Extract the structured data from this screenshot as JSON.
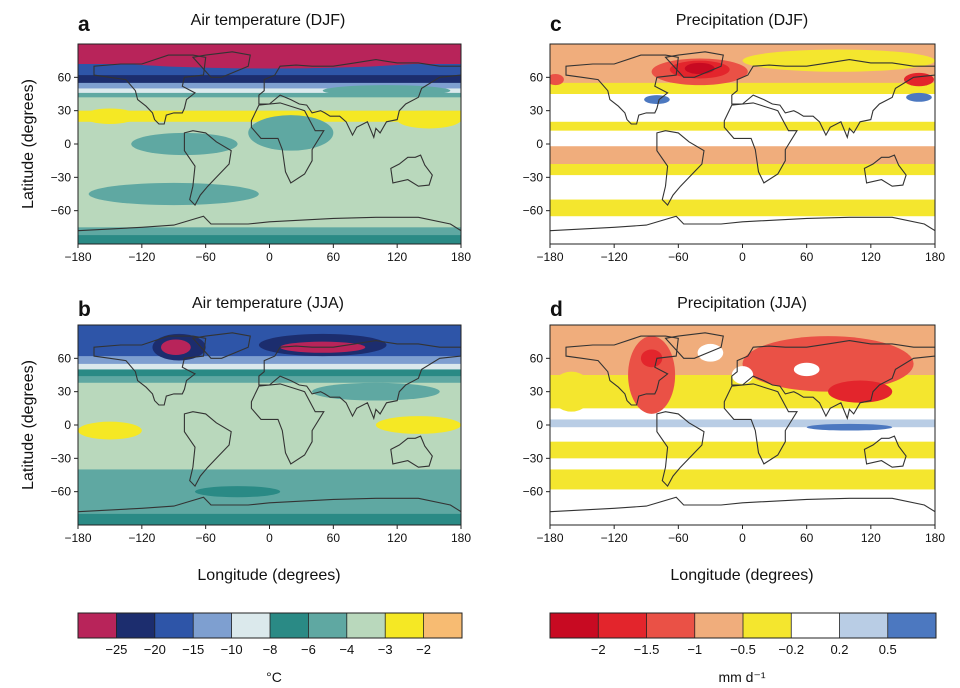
{
  "chart_data": [
    {
      "panel": "a",
      "type": "heatmap",
      "title": "Air temperature (DJF)",
      "variable": "temperature",
      "xlabel": "",
      "ylabel": "Latitude (degrees)",
      "xlim": [
        -180,
        180
      ],
      "ylim": [
        -90,
        90
      ],
      "x_ticks": [
        -180,
        -120,
        -60,
        0,
        60,
        120,
        180
      ],
      "y_ticks": [
        60,
        30,
        0,
        -30,
        -60
      ],
      "zonal_bands": [
        {
          "from_lat": 90,
          "to_lat": 72,
          "class": 0
        },
        {
          "from_lat": 72,
          "to_lat": 62,
          "class": 2
        },
        {
          "from_lat": 62,
          "to_lat": 55,
          "class": 1
        },
        {
          "from_lat": 55,
          "to_lat": 50,
          "class": 3
        },
        {
          "from_lat": 50,
          "to_lat": 46,
          "class": 4
        },
        {
          "from_lat": 46,
          "to_lat": 42,
          "class": 6
        },
        {
          "from_lat": 42,
          "to_lat": 30,
          "class": 7
        },
        {
          "from_lat": 30,
          "to_lat": 20,
          "class": 8
        },
        {
          "from_lat": 20,
          "to_lat": -75,
          "class": 7
        },
        {
          "from_lat": -75,
          "to_lat": -82,
          "class": 6
        },
        {
          "from_lat": -82,
          "to_lat": -90,
          "class": 5
        }
      ],
      "anomaly_regions": [
        {
          "lon": 0,
          "lat": 80,
          "rlon": 180,
          "rlat": 12,
          "class": 0
        },
        {
          "lon": 110,
          "lat": 48,
          "rlon": 60,
          "rlat": 5,
          "class": 6
        },
        {
          "lon": 20,
          "lat": 10,
          "rlon": 40,
          "rlat": 16,
          "class": 6
        },
        {
          "lon": -80,
          "lat": 0,
          "rlon": 50,
          "rlat": 10,
          "class": 6
        },
        {
          "lon": -90,
          "lat": -45,
          "rlon": 80,
          "rlat": 10,
          "class": 6
        },
        {
          "lon": 150,
          "lat": 22,
          "rlon": 30,
          "rlat": 8,
          "class": 8
        },
        {
          "lon": -150,
          "lat": 25,
          "rlon": 25,
          "rlat": 7,
          "class": 8
        }
      ]
    },
    {
      "panel": "b",
      "type": "heatmap",
      "title": "Air temperature (JJA)",
      "variable": "temperature",
      "xlabel": "Longitude (degrees)",
      "ylabel": "Latitude (degrees)",
      "xlim": [
        -180,
        180
      ],
      "ylim": [
        -90,
        90
      ],
      "x_ticks": [
        -180,
        -120,
        -60,
        0,
        60,
        120,
        180
      ],
      "y_ticks": [
        60,
        30,
        0,
        -30,
        -60
      ],
      "zonal_bands": [
        {
          "from_lat": 90,
          "to_lat": 62,
          "class": 2
        },
        {
          "from_lat": 62,
          "to_lat": 55,
          "class": 3
        },
        {
          "from_lat": 55,
          "to_lat": 50,
          "class": 4
        },
        {
          "from_lat": 50,
          "to_lat": 44,
          "class": 5
        },
        {
          "from_lat": 44,
          "to_lat": 38,
          "class": 6
        },
        {
          "from_lat": 38,
          "to_lat": -40,
          "class": 7
        },
        {
          "from_lat": -40,
          "to_lat": -80,
          "class": 6
        },
        {
          "from_lat": -80,
          "to_lat": -90,
          "class": 5
        }
      ],
      "anomaly_regions": [
        {
          "lon": -85,
          "lat": 70,
          "rlon": 25,
          "rlat": 12,
          "class": 1
        },
        {
          "lon": -88,
          "lat": 70,
          "rlon": 14,
          "rlat": 7,
          "class": 0
        },
        {
          "lon": 50,
          "lat": 72,
          "rlon": 60,
          "rlat": 10,
          "class": 1
        },
        {
          "lon": 50,
          "lat": 70,
          "rlon": 40,
          "rlat": 5,
          "class": 0
        },
        {
          "lon": -150,
          "lat": -5,
          "rlon": 30,
          "rlat": 8,
          "class": 8
        },
        {
          "lon": 140,
          "lat": 0,
          "rlon": 40,
          "rlat": 8,
          "class": 8
        },
        {
          "lon": -30,
          "lat": -60,
          "rlon": 40,
          "rlat": 5,
          "class": 5
        },
        {
          "lon": 100,
          "lat": 30,
          "rlon": 60,
          "rlat": 8,
          "class": 6
        }
      ]
    },
    {
      "panel": "c",
      "type": "heatmap",
      "title": "Precipitation (DJF)",
      "variable": "precipitation",
      "xlabel": "",
      "ylabel": "",
      "xlim": [
        -180,
        180
      ],
      "ylim": [
        -90,
        90
      ],
      "x_ticks": [
        -180,
        -120,
        -60,
        0,
        60,
        120,
        180
      ],
      "y_ticks": [
        60,
        30,
        0,
        -30,
        -60
      ],
      "zonal_bands": [
        {
          "from_lat": 90,
          "to_lat": 75,
          "class": 3
        },
        {
          "from_lat": 75,
          "to_lat": 55,
          "class": 3
        },
        {
          "from_lat": 55,
          "to_lat": 45,
          "class": 4
        },
        {
          "from_lat": 45,
          "to_lat": 20,
          "class": 5
        },
        {
          "from_lat": 20,
          "to_lat": 12,
          "class": 4
        },
        {
          "from_lat": 12,
          "to_lat": -2,
          "class": 5
        },
        {
          "from_lat": -2,
          "to_lat": -18,
          "class": 3
        },
        {
          "from_lat": -18,
          "to_lat": -28,
          "class": 4
        },
        {
          "from_lat": -28,
          "to_lat": -50,
          "class": 5
        },
        {
          "from_lat": -50,
          "to_lat": -65,
          "class": 4
        },
        {
          "from_lat": -65,
          "to_lat": -90,
          "class": 5
        }
      ],
      "anomaly_regions": [
        {
          "lon": -40,
          "lat": 65,
          "rlon": 45,
          "rlat": 12,
          "class": 2
        },
        {
          "lon": -40,
          "lat": 67,
          "rlon": 28,
          "rlat": 8,
          "class": 1
        },
        {
          "lon": -40,
          "lat": 68,
          "rlon": 14,
          "rlat": 5,
          "class": 0
        },
        {
          "lon": 165,
          "lat": 58,
          "rlon": 14,
          "rlat": 6,
          "class": 1
        },
        {
          "lon": -175,
          "lat": 58,
          "rlon": 8,
          "rlat": 5,
          "class": 2
        },
        {
          "lon": -80,
          "lat": 40,
          "rlon": 12,
          "rlat": 4,
          "class": 7
        },
        {
          "lon": 165,
          "lat": 42,
          "rlon": 12,
          "rlat": 4,
          "class": 7
        },
        {
          "lon": 90,
          "lat": 75,
          "rlon": 90,
          "rlat": 10,
          "class": 4
        }
      ]
    },
    {
      "panel": "d",
      "type": "heatmap",
      "title": "Precipitation (JJA)",
      "variable": "precipitation",
      "xlabel": "Longitude (degrees)",
      "ylabel": "",
      "xlim": [
        -180,
        180
      ],
      "ylim": [
        -90,
        90
      ],
      "x_ticks": [
        -180,
        -120,
        -60,
        0,
        60,
        120,
        180
      ],
      "y_ticks": [
        60,
        30,
        0,
        -30,
        -60
      ],
      "zonal_bands": [
        {
          "from_lat": 90,
          "to_lat": 45,
          "class": 3
        },
        {
          "from_lat": 45,
          "to_lat": 15,
          "class": 4
        },
        {
          "from_lat": 15,
          "to_lat": 5,
          "class": 5
        },
        {
          "from_lat": 5,
          "to_lat": -2,
          "class": 6
        },
        {
          "from_lat": -2,
          "to_lat": -15,
          "class": 5
        },
        {
          "from_lat": -15,
          "to_lat": -30,
          "class": 4
        },
        {
          "from_lat": -30,
          "to_lat": -40,
          "class": 5
        },
        {
          "from_lat": -40,
          "to_lat": -58,
          "class": 4
        },
        {
          "from_lat": -58,
          "to_lat": -90,
          "class": 5
        }
      ],
      "anomaly_regions": [
        {
          "lon": -85,
          "lat": 45,
          "rlon": 22,
          "rlat": 35,
          "class": 2
        },
        {
          "lon": -85,
          "lat": 60,
          "rlon": 10,
          "rlat": 8,
          "class": 1
        },
        {
          "lon": 80,
          "lat": 55,
          "rlon": 80,
          "rlat": 25,
          "class": 2
        },
        {
          "lon": 110,
          "lat": 30,
          "rlon": 30,
          "rlat": 10,
          "class": 1
        },
        {
          "lon": -160,
          "lat": 30,
          "rlon": 20,
          "rlat": 18,
          "class": 4
        },
        {
          "lon": 100,
          "lat": -2,
          "rlon": 40,
          "rlat": 3,
          "class": 7
        },
        {
          "lon": -30,
          "lat": 65,
          "rlon": 12,
          "rlat": 8,
          "class": 5
        },
        {
          "lon": 0,
          "lat": 45,
          "rlon": 10,
          "rlat": 8,
          "class": 5
        },
        {
          "lon": 60,
          "lat": 50,
          "rlon": 12,
          "rlat": 6,
          "class": 5
        }
      ]
    }
  ],
  "figure": {
    "panels": [
      {
        "letter": "a",
        "title": "Air temperature (DJF)",
        "ylabel": "Latitude (degrees)",
        "xlabel": ""
      },
      {
        "letter": "b",
        "title": "Air temperature (JJA)",
        "ylabel": "Latitude (degrees)",
        "xlabel": "Longitude (degrees)"
      },
      {
        "letter": "c",
        "title": "Precipitation (DJF)",
        "ylabel": "",
        "xlabel": ""
      },
      {
        "letter": "d",
        "title": "Precipitation (JJA)",
        "ylabel": "",
        "xlabel": "Longitude (degrees)"
      }
    ],
    "x_tick_labels": [
      "−180",
      "−120",
      "−60",
      "0",
      "60",
      "120",
      "180"
    ],
    "y_tick_labels": [
      "60",
      "30",
      "0",
      "−30",
      "−60"
    ]
  },
  "legends": {
    "temperature": {
      "unit": "°C",
      "tick_labels": [
        "−25",
        "−20",
        "−15",
        "−10",
        "−8",
        "−6",
        "−4",
        "−3",
        "−2"
      ],
      "colors": [
        "#b8245a",
        "#1c2d6e",
        "#2e55a8",
        "#7e9fd0",
        "#dbe9ec",
        "#2a8a85",
        "#5fa8a2",
        "#b9d8bc",
        "#f5e824",
        "#f7bb72"
      ]
    },
    "precipitation": {
      "unit": "mm d⁻¹",
      "tick_labels": [
        "−2",
        "−1.5",
        "−1",
        "−0.5",
        "−0.2",
        "0.2",
        "0.5"
      ],
      "colors": [
        "#c80a22",
        "#e3252c",
        "#ea5146",
        "#f0ad7c",
        "#f4e62e",
        "#ffffff",
        "#b9cde5",
        "#4c78c0"
      ]
    }
  },
  "coastline": {
    "description": "schematic continent outlines (model grid)",
    "north_america": [
      [
        -165,
        70
      ],
      [
        -140,
        72
      ],
      [
        -120,
        72
      ],
      [
        -95,
        80
      ],
      [
        -72,
        80
      ],
      [
        -60,
        78
      ],
      [
        -62,
        62
      ],
      [
        -80,
        60
      ],
      [
        -82,
        52
      ],
      [
        -70,
        46
      ],
      [
        -78,
        40
      ],
      [
        -80,
        32
      ],
      [
        -82,
        28
      ],
      [
        -90,
        28
      ],
      [
        -97,
        26
      ],
      [
        -99,
        18
      ],
      [
        -104,
        18
      ],
      [
        -108,
        22
      ],
      [
        -110,
        28
      ],
      [
        -116,
        34
      ],
      [
        -124,
        40
      ],
      [
        -126,
        48
      ],
      [
        -135,
        58
      ],
      [
        -150,
        60
      ],
      [
        -165,
        62
      ],
      [
        -165,
        70
      ]
    ],
    "south_america": [
      [
        -80,
        10
      ],
      [
        -72,
        12
      ],
      [
        -60,
        10
      ],
      [
        -50,
        2
      ],
      [
        -36,
        -6
      ],
      [
        -38,
        -18
      ],
      [
        -48,
        -28
      ],
      [
        -58,
        -38
      ],
      [
        -65,
        -46
      ],
      [
        -70,
        -55
      ],
      [
        -75,
        -50
      ],
      [
        -72,
        -38
      ],
      [
        -70,
        -20
      ],
      [
        -80,
        -6
      ],
      [
        -80,
        10
      ]
    ],
    "eurasia": [
      [
        -10,
        36
      ],
      [
        -10,
        44
      ],
      [
        -5,
        48
      ],
      [
        -5,
        58
      ],
      [
        5,
        62
      ],
      [
        10,
        70
      ],
      [
        25,
        71
      ],
      [
        40,
        70
      ],
      [
        60,
        70
      ],
      [
        80,
        73
      ],
      [
        100,
        76
      ],
      [
        120,
        73
      ],
      [
        140,
        73
      ],
      [
        160,
        70
      ],
      [
        180,
        70
      ],
      [
        180,
        62
      ],
      [
        160,
        60
      ],
      [
        143,
        50
      ],
      [
        140,
        42
      ],
      [
        128,
        36
      ],
      [
        122,
        30
      ],
      [
        120,
        22
      ],
      [
        110,
        20
      ],
      [
        104,
        10
      ],
      [
        100,
        14
      ],
      [
        98,
        6
      ],
      [
        92,
        20
      ],
      [
        82,
        15
      ],
      [
        78,
        8
      ],
      [
        72,
        20
      ],
      [
        66,
        25
      ],
      [
        57,
        25
      ],
      [
        52,
        28
      ],
      [
        48,
        30
      ],
      [
        40,
        28
      ],
      [
        35,
        35
      ],
      [
        28,
        36
      ],
      [
        20,
        40
      ],
      [
        10,
        44
      ],
      [
        0,
        36
      ],
      [
        -10,
        36
      ]
    ],
    "africa": [
      [
        -17,
        21
      ],
      [
        -10,
        35
      ],
      [
        10,
        37
      ],
      [
        30,
        31
      ],
      [
        33,
        30
      ],
      [
        43,
        12
      ],
      [
        51,
        12
      ],
      [
        40,
        -5
      ],
      [
        40,
        -15
      ],
      [
        33,
        -27
      ],
      [
        20,
        -35
      ],
      [
        15,
        -25
      ],
      [
        12,
        -5
      ],
      [
        8,
        5
      ],
      [
        -8,
        5
      ],
      [
        -17,
        15
      ],
      [
        -17,
        21
      ]
    ],
    "australia": [
      [
        114,
        -22
      ],
      [
        122,
        -18
      ],
      [
        130,
        -12
      ],
      [
        137,
        -12
      ],
      [
        142,
        -10
      ],
      [
        146,
        -19
      ],
      [
        153,
        -28
      ],
      [
        150,
        -37
      ],
      [
        140,
        -38
      ],
      [
        130,
        -32
      ],
      [
        116,
        -35
      ],
      [
        114,
        -22
      ]
    ],
    "greenland": [
      [
        -55,
        60
      ],
      [
        -45,
        60
      ],
      [
        -20,
        70
      ],
      [
        -18,
        80
      ],
      [
        -35,
        83
      ],
      [
        -60,
        80
      ],
      [
        -72,
        78
      ],
      [
        -55,
        60
      ]
    ],
    "antarctica": [
      [
        -180,
        -78
      ],
      [
        -120,
        -75
      ],
      [
        -90,
        -73
      ],
      [
        -62,
        -65
      ],
      [
        -55,
        -72
      ],
      [
        -20,
        -72
      ],
      [
        0,
        -70
      ],
      [
        60,
        -67
      ],
      [
        100,
        -66
      ],
      [
        140,
        -66
      ],
      [
        170,
        -72
      ],
      [
        180,
        -78
      ]
    ]
  }
}
